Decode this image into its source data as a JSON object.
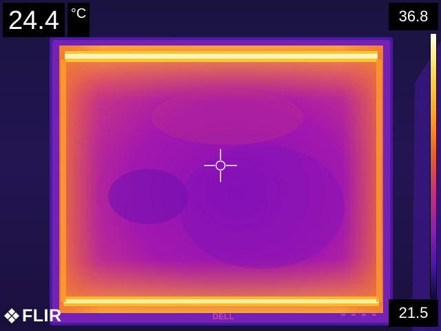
{
  "readout": {
    "spot_temperature": "24.4",
    "unit": "°C"
  },
  "scale": {
    "max": "36.8",
    "min": "21.5",
    "palette": "iron",
    "colors": [
      "#ffffff",
      "#fff3a0",
      "#ffd23a",
      "#ff9e1a",
      "#ef5a2d",
      "#c92f7c",
      "#8f1fae",
      "#4b15a4",
      "#120b36"
    ]
  },
  "brand": {
    "logo_text": "FLIR",
    "bezel_logo": "DELL"
  },
  "icons": {
    "crosshair": "crosshair-icon",
    "logo_mark": "flir-diamond-icon"
  }
}
